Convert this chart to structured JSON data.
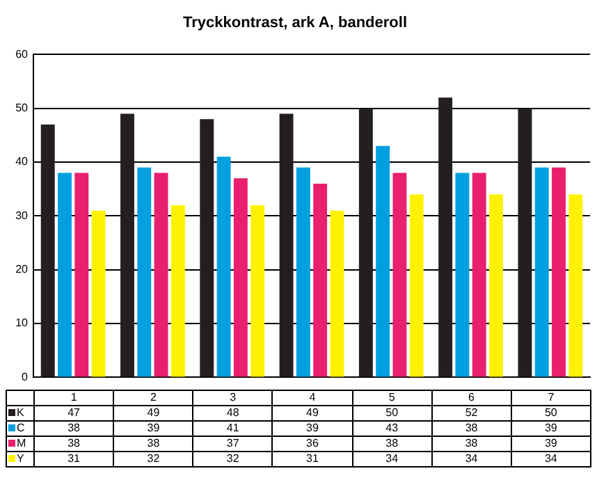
{
  "chart_data": {
    "type": "bar",
    "title": "Tryckkontrast, ark A, banderoll",
    "categories": [
      "1",
      "2",
      "3",
      "4",
      "5",
      "6",
      "7"
    ],
    "series": [
      {
        "name": "K",
        "color": "#231f20",
        "values": [
          47,
          49,
          48,
          49,
          50,
          52,
          50
        ]
      },
      {
        "name": "C",
        "color": "#00a0e0",
        "values": [
          38,
          39,
          41,
          39,
          43,
          38,
          39
        ]
      },
      {
        "name": "M",
        "color": "#e8206e",
        "values": [
          38,
          38,
          37,
          36,
          38,
          38,
          39
        ]
      },
      {
        "name": "Y",
        "color": "#fff200",
        "values": [
          31,
          32,
          32,
          31,
          34,
          34,
          34
        ]
      }
    ],
    "ylim": [
      0,
      60
    ],
    "yticks": [
      0,
      10,
      20,
      30,
      40,
      50,
      60
    ],
    "grid": "y",
    "legend": "bottom",
    "data_labels": true
  }
}
